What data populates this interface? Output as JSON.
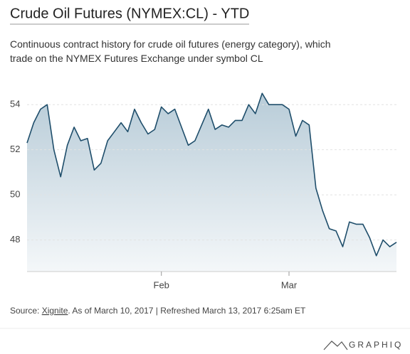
{
  "chart_data": {
    "type": "area",
    "title": "Crude Oil Futures (NYMEX:CL) - YTD",
    "subtitle": "Continuous contract history for crude oil futures (energy category), which trade on the NYMEX Futures Exchange under symbol CL",
    "categories": [
      null,
      null,
      null,
      null,
      null,
      null,
      null,
      null,
      null,
      null,
      null,
      null,
      null,
      null,
      null,
      null,
      null,
      null,
      null,
      null,
      "Feb",
      null,
      null,
      null,
      null,
      null,
      null,
      null,
      null,
      null,
      null,
      null,
      null,
      null,
      null,
      null,
      null,
      null,
      null,
      "Mar",
      null,
      null,
      null,
      null,
      null,
      null,
      null,
      null,
      null,
      null,
      null,
      null,
      null,
      null,
      null,
      null
    ],
    "values": [
      52.3,
      53.2,
      53.8,
      54.0,
      52.0,
      50.8,
      52.2,
      53.0,
      52.4,
      52.5,
      51.1,
      51.4,
      52.4,
      52.8,
      53.2,
      52.8,
      53.8,
      53.2,
      52.7,
      52.9,
      53.9,
      53.6,
      53.8,
      53.0,
      52.2,
      52.4,
      53.1,
      53.8,
      52.9,
      53.1,
      53.0,
      53.3,
      53.3,
      54.0,
      53.6,
      54.5,
      54.0,
      54.0,
      54.0,
      53.8,
      52.6,
      53.3,
      53.1,
      50.3,
      49.3,
      48.5,
      48.4,
      47.7,
      48.8,
      48.7,
      48.7,
      48.1,
      47.3,
      48.0,
      47.7,
      47.9
    ],
    "color": "#1f4e6b",
    "ylim": [
      46.6,
      54.7
    ],
    "yticks": [
      48,
      50,
      52,
      54
    ],
    "grid": true,
    "source_label": "Source:",
    "source_link": "Xignite",
    "source_note": ". As of March 10, 2017 | Refreshed March 13, 2017 6:25am ET",
    "brand": "GRAPHIQ"
  }
}
